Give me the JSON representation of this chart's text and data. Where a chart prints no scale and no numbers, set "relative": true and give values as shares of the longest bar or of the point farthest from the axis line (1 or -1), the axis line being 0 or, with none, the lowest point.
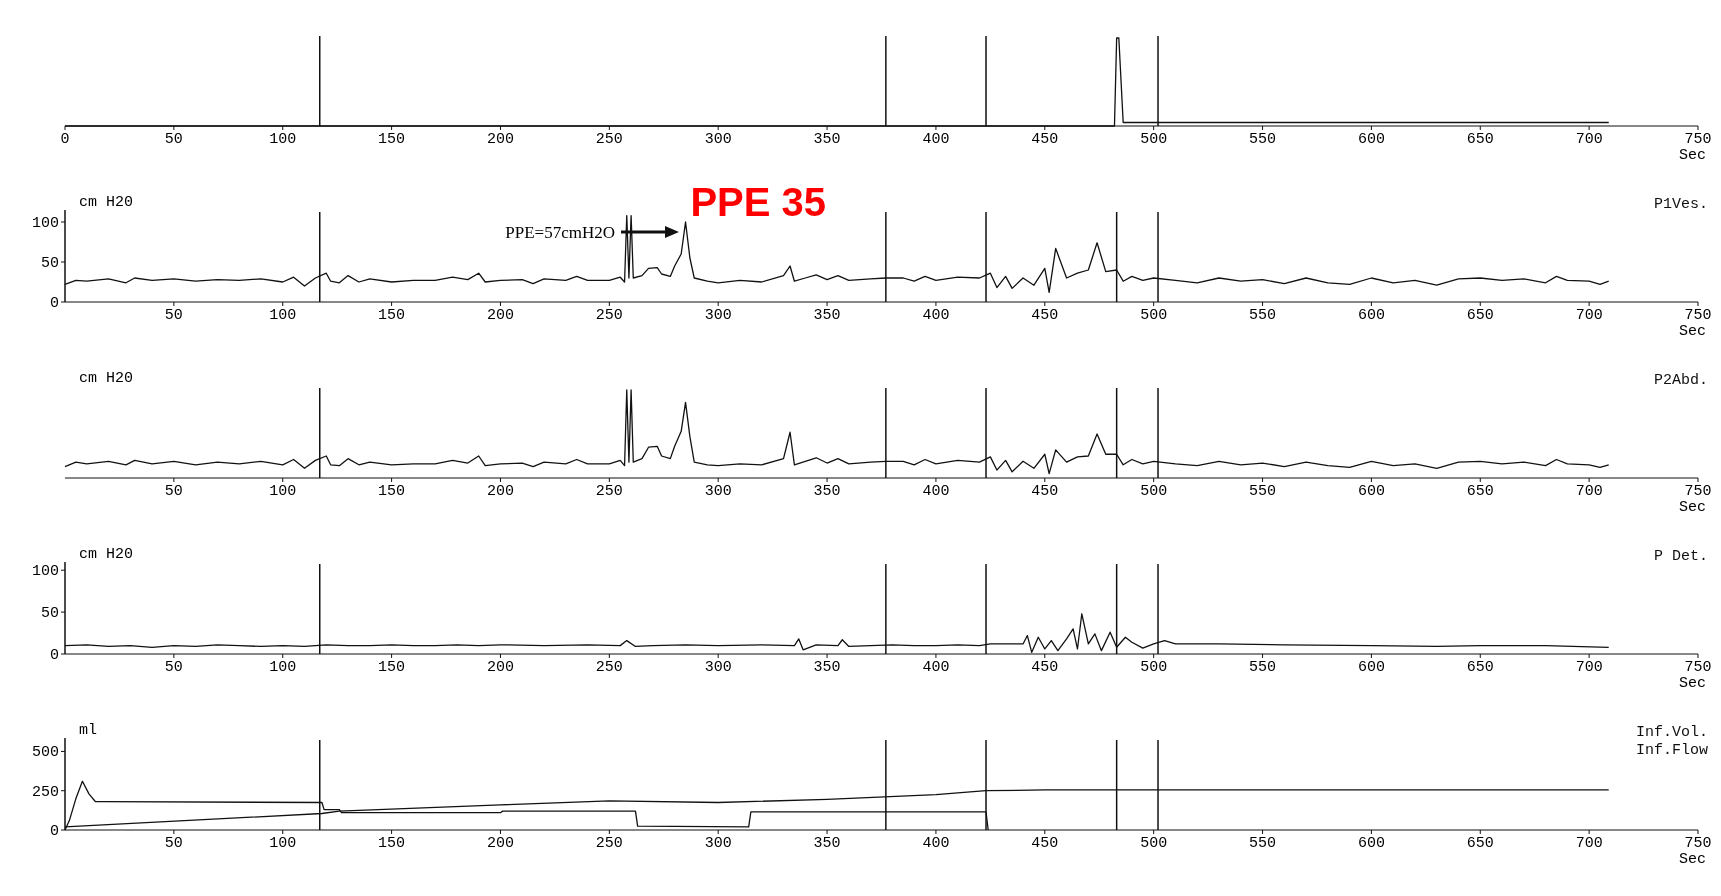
{
  "chart_data": [
    {
      "type": "line",
      "relative": true,
      "xlabel": "Sec",
      "xlim": [
        0,
        750
      ],
      "xticks": [
        0,
        50,
        100,
        150,
        200,
        250,
        300,
        350,
        400,
        450,
        500,
        550,
        600,
        650,
        700,
        750
      ],
      "x": [
        0,
        100,
        200,
        300,
        400,
        482,
        483,
        484,
        486,
        600,
        709
      ],
      "series": [
        {
          "color": "#111111",
          "values": [
            0,
            0,
            0,
            0,
            0,
            0,
            1,
            1,
            0.04,
            0.04,
            0.04
          ]
        }
      ],
      "ref_lines": [
        {
          "axis": "x",
          "value": 117
        },
        {
          "axis": "x",
          "value": 377
        },
        {
          "axis": "x",
          "value": 423
        },
        {
          "axis": "x",
          "value": 502
        }
      ]
    },
    {
      "type": "line",
      "ylabel": "cm H20",
      "xlabel": "Sec",
      "xlim": [
        0,
        750
      ],
      "xticks": [
        50,
        100,
        150,
        200,
        250,
        300,
        350,
        400,
        450,
        500,
        550,
        600,
        650,
        700,
        750
      ],
      "ylim": [
        0,
        110
      ],
      "yticks": [
        0,
        50,
        100
      ],
      "x": [
        0,
        5,
        10,
        20,
        28,
        32,
        40,
        50,
        60,
        70,
        80,
        90,
        100,
        105,
        110,
        115,
        120,
        122,
        126,
        130,
        135,
        140,
        150,
        160,
        170,
        178,
        185,
        190,
        193,
        200,
        210,
        215,
        220,
        230,
        235,
        240,
        250,
        255,
        257,
        258,
        259,
        260,
        261,
        265,
        268,
        272,
        274,
        278,
        280,
        283,
        285,
        287,
        289,
        295,
        300,
        310,
        320,
        330,
        333,
        335,
        340,
        345,
        350,
        355,
        360,
        370,
        377,
        385,
        390,
        395,
        400,
        410,
        420,
        425,
        428,
        432,
        435,
        440,
        445,
        450,
        452,
        455,
        460,
        465,
        470,
        474,
        478,
        483,
        486,
        490,
        495,
        500,
        510,
        520,
        530,
        540,
        550,
        560,
        570,
        580,
        590,
        600,
        610,
        620,
        630,
        640,
        650,
        660,
        670,
        680,
        685,
        690,
        700,
        705,
        709
      ],
      "series": [
        {
          "name": "P1Ves.",
          "color": "#111111",
          "values": [
            22,
            27,
            26,
            29,
            24,
            30,
            27,
            29,
            26,
            28,
            27,
            29,
            25,
            31,
            20,
            30,
            36,
            26,
            24,
            33,
            25,
            29,
            25,
            27,
            27,
            31,
            28,
            36,
            25,
            27,
            28,
            23,
            29,
            27,
            32,
            27,
            27,
            31,
            25,
            108,
            30,
            108,
            30,
            33,
            42,
            43,
            35,
            32,
            45,
            60,
            100,
            55,
            30,
            26,
            24,
            27,
            25,
            33,
            45,
            26,
            30,
            34,
            28,
            33,
            27,
            29,
            30,
            30,
            26,
            32,
            27,
            31,
            30,
            36,
            18,
            32,
            17,
            30,
            21,
            42,
            12,
            67,
            30,
            36,
            40,
            74,
            38,
            40,
            26,
            32,
            27,
            30,
            27,
            24,
            30,
            26,
            28,
            23,
            30,
            24,
            22,
            30,
            24,
            27,
            21,
            29,
            30,
            27,
            29,
            24,
            32,
            27,
            26,
            22,
            26
          ]
        }
      ],
      "ref_lines": [
        {
          "axis": "x",
          "value": 117
        },
        {
          "axis": "x",
          "value": 377
        },
        {
          "axis": "x",
          "value": 423
        },
        {
          "axis": "x",
          "value": 483
        },
        {
          "axis": "x",
          "value": 502
        }
      ],
      "annotations": [
        "PPE=57cmH2O",
        "PPE 35"
      ]
    },
    {
      "type": "line",
      "relative": true,
      "ylabel": "cm H20",
      "xlabel": "Sec",
      "xlim": [
        0,
        750
      ],
      "xticks": [
        50,
        100,
        150,
        200,
        250,
        300,
        350,
        400,
        450,
        500,
        550,
        600,
        650,
        700,
        750
      ],
      "x": [
        0,
        5,
        10,
        20,
        28,
        32,
        40,
        50,
        60,
        70,
        80,
        90,
        100,
        105,
        110,
        115,
        120,
        122,
        126,
        130,
        135,
        140,
        150,
        160,
        170,
        178,
        185,
        190,
        193,
        200,
        210,
        215,
        220,
        230,
        235,
        240,
        250,
        255,
        257,
        258,
        259,
        260,
        261,
        265,
        268,
        272,
        274,
        278,
        280,
        283,
        285,
        287,
        289,
        295,
        300,
        310,
        320,
        330,
        333,
        335,
        340,
        345,
        350,
        355,
        360,
        370,
        377,
        385,
        390,
        395,
        400,
        410,
        420,
        425,
        428,
        432,
        435,
        440,
        445,
        450,
        452,
        455,
        460,
        465,
        470,
        474,
        478,
        483,
        486,
        490,
        495,
        500,
        510,
        520,
        530,
        540,
        550,
        560,
        570,
        580,
        590,
        600,
        610,
        620,
        630,
        640,
        650,
        660,
        670,
        680,
        685,
        690,
        700,
        705,
        709
      ],
      "series": [
        {
          "name": "P2Abd.",
          "color": "#111111",
          "values": [
            0.13,
            0.18,
            0.16,
            0.19,
            0.15,
            0.2,
            0.16,
            0.19,
            0.15,
            0.18,
            0.16,
            0.19,
            0.15,
            0.21,
            0.11,
            0.2,
            0.25,
            0.15,
            0.14,
            0.22,
            0.15,
            0.18,
            0.15,
            0.16,
            0.16,
            0.2,
            0.17,
            0.25,
            0.14,
            0.16,
            0.17,
            0.13,
            0.18,
            0.16,
            0.21,
            0.16,
            0.16,
            0.2,
            0.14,
            1,
            0.18,
            1,
            0.18,
            0.22,
            0.35,
            0.36,
            0.25,
            0.22,
            0.36,
            0.53,
            0.86,
            0.47,
            0.18,
            0.15,
            0.14,
            0.16,
            0.15,
            0.22,
            0.52,
            0.15,
            0.19,
            0.23,
            0.17,
            0.22,
            0.16,
            0.18,
            0.19,
            0.19,
            0.15,
            0.21,
            0.16,
            0.2,
            0.18,
            0.24,
            0.09,
            0.2,
            0.07,
            0.19,
            0.11,
            0.27,
            0.05,
            0.32,
            0.18,
            0.24,
            0.25,
            0.5,
            0.27,
            0.27,
            0.15,
            0.21,
            0.16,
            0.19,
            0.16,
            0.14,
            0.19,
            0.15,
            0.17,
            0.13,
            0.18,
            0.14,
            0.12,
            0.19,
            0.14,
            0.16,
            0.11,
            0.18,
            0.19,
            0.16,
            0.18,
            0.14,
            0.21,
            0.16,
            0.15,
            0.12,
            0.15
          ]
        }
      ],
      "ref_lines": [
        {
          "axis": "x",
          "value": 117
        },
        {
          "axis": "x",
          "value": 377
        },
        {
          "axis": "x",
          "value": 423
        },
        {
          "axis": "x",
          "value": 483
        },
        {
          "axis": "x",
          "value": 502
        }
      ]
    },
    {
      "type": "line",
      "ylabel": "cm H20",
      "xlabel": "Sec",
      "xlim": [
        0,
        750
      ],
      "xticks": [
        50,
        100,
        150,
        200,
        250,
        300,
        350,
        400,
        450,
        500,
        550,
        600,
        650,
        700,
        750
      ],
      "ylim": [
        0,
        105
      ],
      "yticks": [
        0,
        50,
        100
      ],
      "x": [
        0,
        10,
        20,
        30,
        40,
        50,
        60,
        70,
        80,
        90,
        100,
        110,
        120,
        130,
        140,
        150,
        160,
        170,
        180,
        190,
        200,
        220,
        240,
        255,
        258,
        262,
        270,
        285,
        300,
        320,
        335,
        337,
        339,
        345,
        355,
        357,
        360,
        370,
        380,
        390,
        400,
        410,
        420,
        425,
        430,
        440,
        442,
        444,
        447,
        450,
        453,
        456,
        460,
        463,
        465,
        467,
        470,
        473,
        476,
        480,
        483,
        487,
        490,
        495,
        500,
        505,
        510,
        530,
        560,
        600,
        630,
        650,
        680,
        709
      ],
      "series": [
        {
          "name": "P Det.",
          "color": "#111111",
          "values": [
            10,
            11,
            9,
            10,
            8,
            10,
            9,
            11,
            10,
            9,
            10,
            9,
            11,
            10,
            10,
            11,
            10,
            10,
            11,
            10,
            11,
            10,
            11,
            10,
            16,
            9,
            10,
            11,
            10,
            11,
            10,
            18,
            5,
            11,
            10,
            17,
            9,
            10,
            11,
            10,
            10,
            11,
            10,
            12,
            12,
            12,
            22,
            2,
            20,
            6,
            16,
            4,
            18,
            30,
            6,
            48,
            12,
            24,
            4,
            26,
            8,
            20,
            14,
            7,
            12,
            16,
            12,
            12,
            11,
            10,
            9,
            10,
            10,
            8
          ]
        }
      ],
      "ref_lines": [
        {
          "axis": "x",
          "value": 117
        },
        {
          "axis": "x",
          "value": 377
        },
        {
          "axis": "x",
          "value": 423
        },
        {
          "axis": "x",
          "value": 483
        },
        {
          "axis": "x",
          "value": 502
        }
      ]
    },
    {
      "type": "line",
      "ylabel": "ml",
      "xlabel": "Sec",
      "xlim": [
        0,
        750
      ],
      "xticks": [
        50,
        100,
        150,
        200,
        250,
        300,
        350,
        400,
        450,
        500,
        550,
        600,
        650,
        700,
        750
      ],
      "ylim": [
        0,
        560
      ],
      "yticks": [
        0,
        250,
        500
      ],
      "series": [
        {
          "name": "Inf.Vol.",
          "color": "#111111",
          "x": [
            0,
            118,
            126,
            200,
            250,
            300,
            350,
            400,
            423,
            450,
            500,
            709
          ],
          "values": [
            20,
            105,
            120,
            160,
            185,
            175,
            195,
            225,
            250,
            255,
            255,
            255
          ]
        },
        {
          "name": "Inf.Flow",
          "color": "#111111",
          "x": [
            0,
            2,
            5,
            8,
            11,
            14,
            18,
            118,
            119,
            126,
            127,
            200,
            201,
            262,
            263,
            314,
            315,
            423,
            424
          ],
          "values": [
            0,
            60,
            200,
            310,
            230,
            180,
            180,
            175,
            130,
            130,
            110,
            110,
            120,
            120,
            25,
            20,
            115,
            115,
            0
          ]
        }
      ],
      "ref_lines": [
        {
          "axis": "x",
          "value": 117
        },
        {
          "axis": "x",
          "value": 377
        },
        {
          "axis": "x",
          "value": 423
        },
        {
          "axis": "x",
          "value": 483
        },
        {
          "axis": "x",
          "value": 502
        }
      ]
    }
  ]
}
